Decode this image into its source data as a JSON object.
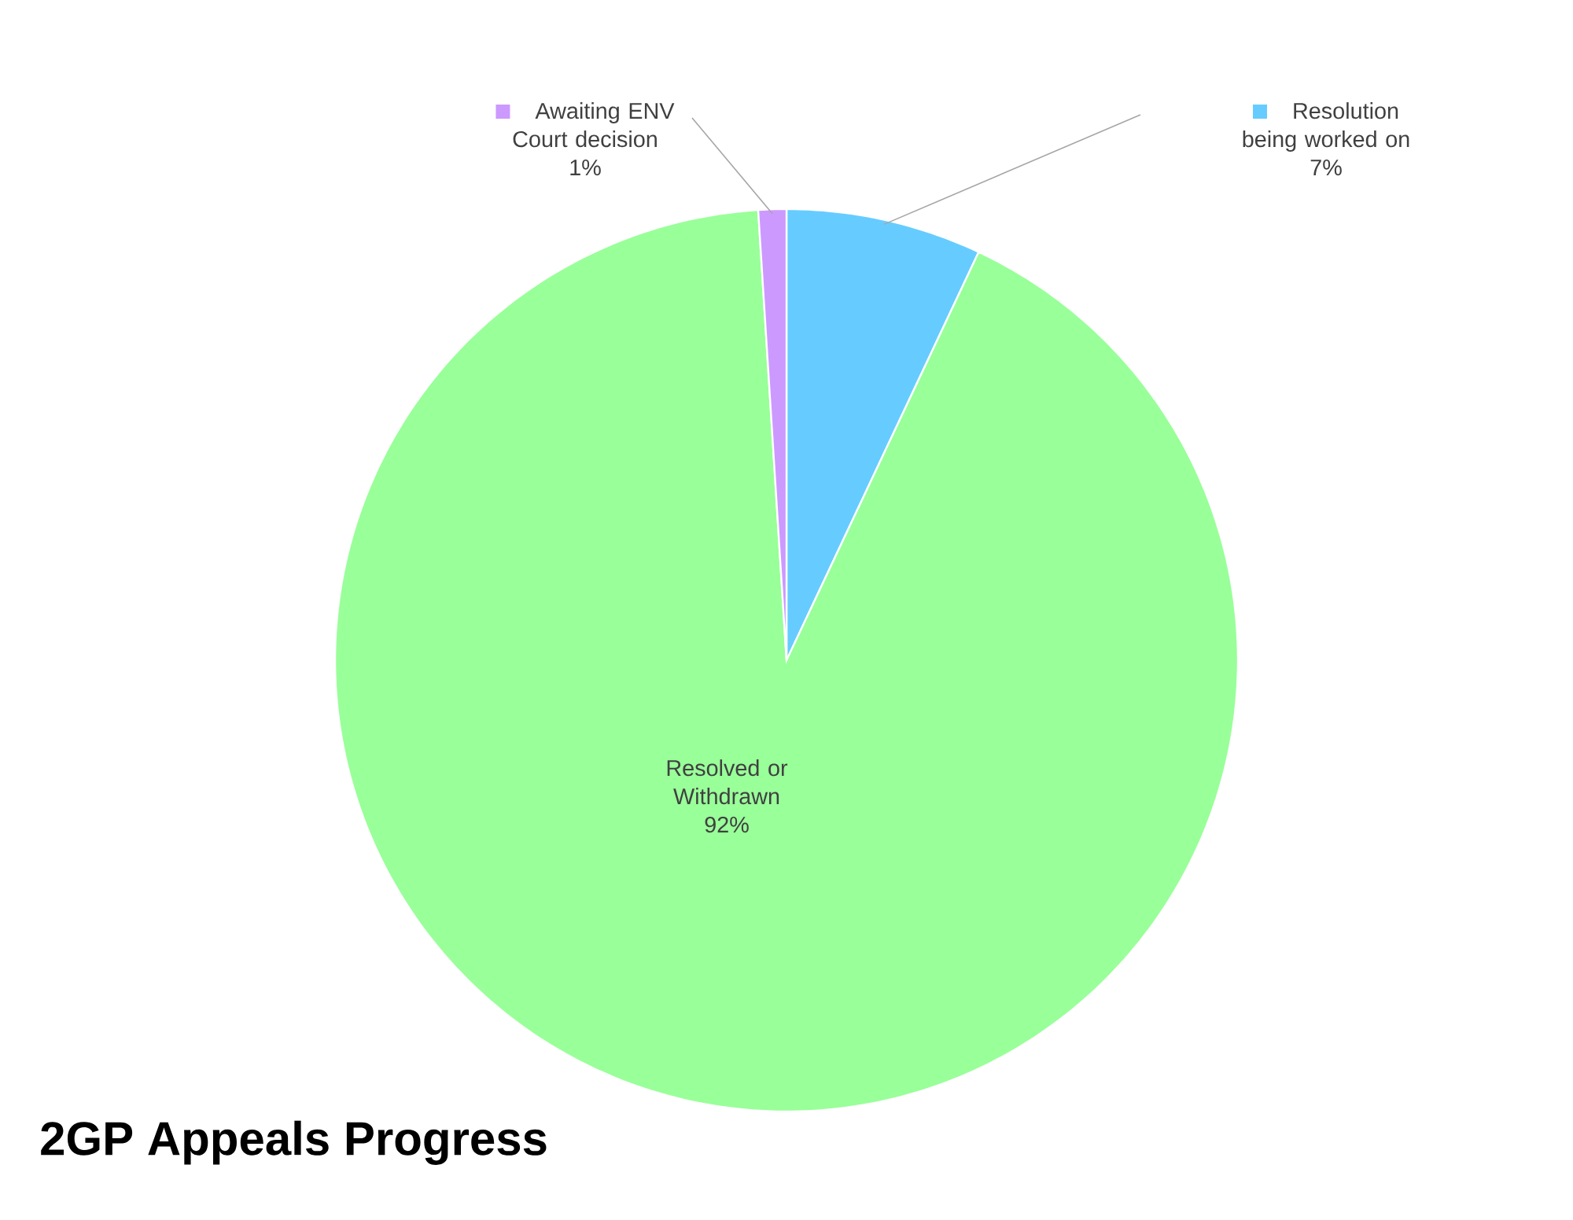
{
  "chart_data": {
    "type": "pie",
    "title": "2GP Appeals Progress",
    "categories": [
      "Resolution being worked on",
      "Resolved or Withdrawn",
      "Awaiting ENV Court decision"
    ],
    "values": [
      7,
      92,
      1
    ],
    "value_labels": [
      "7%",
      "92%",
      "1%"
    ],
    "colors": [
      "#66ccff",
      "#99ff99",
      "#cc99ff"
    ],
    "legend": "top"
  }
}
